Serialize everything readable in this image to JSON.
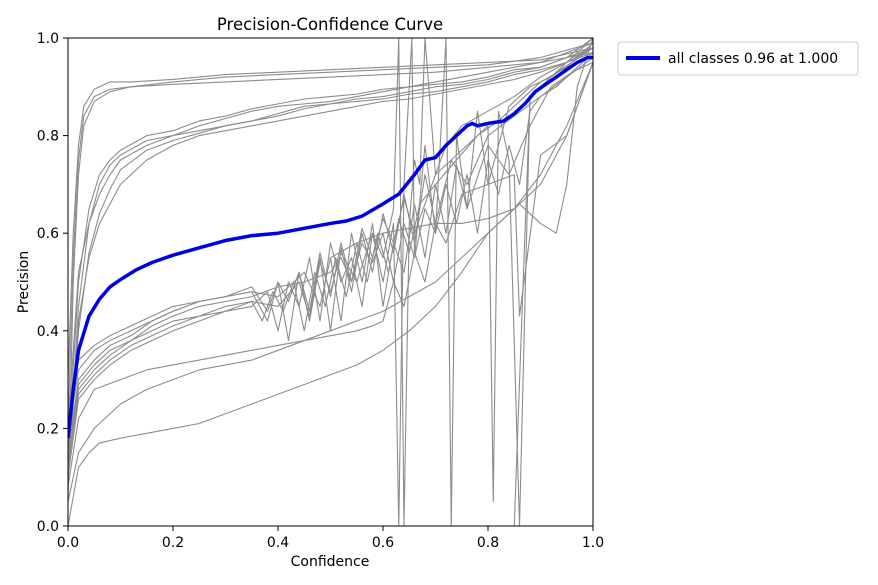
{
  "chart_data": {
    "type": "line",
    "title": "Precision-Confidence Curve",
    "xlabel": "Confidence",
    "ylabel": "Precision",
    "xlim": [
      0.0,
      1.0
    ],
    "ylim": [
      0.0,
      1.0
    ],
    "xticks": [
      "0.0",
      "0.2",
      "0.4",
      "0.6",
      "0.8",
      "1.0"
    ],
    "yticks": [
      "0.0",
      "0.2",
      "0.4",
      "0.6",
      "0.8",
      "1.0"
    ],
    "grid": false,
    "legend_position": "outside-top-right",
    "legend": [
      "all classes 0.96 at 1.000"
    ],
    "colors": {
      "class_line": "#8c8c8c",
      "all_classes": "#0000e6"
    },
    "series": [
      {
        "name": "all classes 0.96 at 1.000",
        "highlight": true,
        "x": [
          0.0,
          0.01,
          0.02,
          0.04,
          0.06,
          0.08,
          0.1,
          0.13,
          0.16,
          0.2,
          0.25,
          0.3,
          0.35,
          0.4,
          0.45,
          0.5,
          0.53,
          0.56,
          0.6,
          0.63,
          0.66,
          0.68,
          0.7,
          0.72,
          0.74,
          0.76,
          0.77,
          0.78,
          0.8,
          0.83,
          0.85,
          0.87,
          0.89,
          0.91,
          0.93,
          0.95,
          0.97,
          0.99,
          1.0
        ],
        "y": [
          0.18,
          0.28,
          0.36,
          0.43,
          0.465,
          0.49,
          0.505,
          0.525,
          0.54,
          0.555,
          0.57,
          0.585,
          0.595,
          0.6,
          0.61,
          0.62,
          0.625,
          0.635,
          0.66,
          0.68,
          0.72,
          0.75,
          0.755,
          0.78,
          0.8,
          0.82,
          0.825,
          0.82,
          0.825,
          0.83,
          0.845,
          0.865,
          0.89,
          0.905,
          0.92,
          0.935,
          0.95,
          0.96,
          0.96
        ]
      },
      {
        "name": "",
        "x": [
          0.0,
          0.01,
          0.02,
          0.03,
          0.05,
          0.08,
          0.12,
          0.2,
          0.3,
          0.4,
          0.5,
          0.6,
          0.7,
          0.8,
          0.9,
          0.95,
          1.0
        ],
        "y": [
          0.05,
          0.5,
          0.72,
          0.82,
          0.87,
          0.89,
          0.9,
          0.905,
          0.91,
          0.915,
          0.92,
          0.925,
          0.93,
          0.94,
          0.95,
          0.96,
          0.97
        ]
      },
      {
        "name": "",
        "x": [
          0.0,
          0.01,
          0.02,
          0.03,
          0.05,
          0.08,
          0.12,
          0.2,
          0.3,
          0.4,
          0.5,
          0.6,
          0.7,
          0.8,
          0.9,
          1.0
        ],
        "y": [
          0.2,
          0.55,
          0.75,
          0.84,
          0.88,
          0.895,
          0.9,
          0.91,
          0.92,
          0.925,
          0.93,
          0.935,
          0.94,
          0.945,
          0.96,
          0.99
        ]
      },
      {
        "name": "",
        "x": [
          0.0,
          0.01,
          0.02,
          0.03,
          0.05,
          0.08,
          0.12,
          0.2,
          0.3,
          0.4,
          0.5,
          0.6,
          0.7,
          0.8,
          0.9,
          1.0
        ],
        "y": [
          0.3,
          0.6,
          0.78,
          0.86,
          0.895,
          0.91,
          0.91,
          0.915,
          0.925,
          0.93,
          0.935,
          0.94,
          0.945,
          0.95,
          0.955,
          0.98
        ]
      },
      {
        "name": "",
        "x": [
          0.0,
          0.02,
          0.04,
          0.06,
          0.08,
          0.1,
          0.15,
          0.2,
          0.25,
          0.3,
          0.35,
          0.4,
          0.45,
          0.5,
          0.55,
          0.6,
          0.65,
          0.7,
          0.75,
          0.8,
          0.85,
          0.9,
          0.95,
          1.0
        ],
        "y": [
          0.1,
          0.45,
          0.62,
          0.7,
          0.74,
          0.76,
          0.79,
          0.8,
          0.82,
          0.835,
          0.85,
          0.86,
          0.865,
          0.87,
          0.88,
          0.89,
          0.9,
          0.905,
          0.91,
          0.92,
          0.935,
          0.94,
          0.96,
          0.98
        ]
      },
      {
        "name": "",
        "x": [
          0.0,
          0.02,
          0.04,
          0.06,
          0.08,
          0.1,
          0.15,
          0.2,
          0.25,
          0.3,
          0.35,
          0.4,
          0.45,
          0.5,
          0.55,
          0.6,
          0.65,
          0.7,
          0.75,
          0.8,
          0.85,
          0.9,
          0.95,
          1.0
        ],
        "y": [
          0.15,
          0.5,
          0.65,
          0.72,
          0.75,
          0.77,
          0.8,
          0.81,
          0.83,
          0.84,
          0.855,
          0.865,
          0.875,
          0.88,
          0.885,
          0.895,
          0.9,
          0.91,
          0.92,
          0.93,
          0.94,
          0.95,
          0.97,
          0.99
        ]
      },
      {
        "name": "",
        "x": [
          0.0,
          0.02,
          0.04,
          0.06,
          0.08,
          0.1,
          0.15,
          0.2,
          0.25,
          0.3,
          0.35,
          0.4,
          0.45,
          0.5,
          0.55,
          0.6,
          0.65,
          0.7,
          0.75,
          0.8,
          0.85,
          0.9,
          0.95,
          1.0
        ],
        "y": [
          0.2,
          0.52,
          0.62,
          0.68,
          0.72,
          0.75,
          0.78,
          0.8,
          0.81,
          0.82,
          0.83,
          0.845,
          0.86,
          0.865,
          0.87,
          0.875,
          0.885,
          0.89,
          0.9,
          0.91,
          0.925,
          0.935,
          0.95,
          0.97
        ]
      },
      {
        "name": "",
        "x": [
          0.0,
          0.02,
          0.04,
          0.06,
          0.08,
          0.1,
          0.15,
          0.2,
          0.25,
          0.3,
          0.35,
          0.4,
          0.45,
          0.5,
          0.55,
          0.6,
          0.65,
          0.7,
          0.75,
          0.8,
          0.85,
          0.9,
          0.95,
          1.0
        ],
        "y": [
          0.1,
          0.4,
          0.56,
          0.64,
          0.69,
          0.73,
          0.77,
          0.79,
          0.805,
          0.82,
          0.83,
          0.84,
          0.855,
          0.865,
          0.875,
          0.88,
          0.89,
          0.9,
          0.905,
          0.915,
          0.93,
          0.94,
          0.96,
          1.0
        ]
      },
      {
        "name": "",
        "x": [
          0.0,
          0.02,
          0.04,
          0.06,
          0.08,
          0.1,
          0.15,
          0.2,
          0.25,
          0.3,
          0.35,
          0.4,
          0.45,
          0.5,
          0.55,
          0.6,
          0.65,
          0.7,
          0.75,
          0.8,
          0.85,
          0.9,
          0.95,
          1.0
        ],
        "y": [
          0.12,
          0.42,
          0.55,
          0.62,
          0.66,
          0.7,
          0.75,
          0.78,
          0.8,
          0.81,
          0.82,
          0.83,
          0.84,
          0.85,
          0.86,
          0.87,
          0.875,
          0.885,
          0.895,
          0.905,
          0.915,
          0.93,
          0.95,
          0.98
        ]
      },
      {
        "name": "",
        "x": [
          0.0,
          0.02,
          0.05,
          0.08,
          0.12,
          0.16,
          0.2,
          0.25,
          0.3,
          0.35,
          0.4,
          0.45,
          0.5,
          0.52,
          0.54,
          0.56,
          0.58,
          0.6,
          0.62,
          0.64,
          0.66,
          0.68,
          0.7,
          0.72,
          0.74,
          0.76,
          0.78,
          0.8,
          0.82,
          0.84,
          0.86,
          0.88,
          0.9,
          0.93,
          0.96,
          1.0
        ],
        "y": [
          0.12,
          0.28,
          0.32,
          0.35,
          0.38,
          0.41,
          0.43,
          0.45,
          0.46,
          0.47,
          0.49,
          0.5,
          0.52,
          0.55,
          0.5,
          0.58,
          0.54,
          0.6,
          0.5,
          0.62,
          0.55,
          0.65,
          0.6,
          0.7,
          0.62,
          0.72,
          0.6,
          0.75,
          0.68,
          0.78,
          0.7,
          0.85,
          0.88,
          0.9,
          0.93,
          0.95
        ]
      },
      {
        "name": "",
        "x": [
          0.0,
          0.02,
          0.05,
          0.08,
          0.12,
          0.16,
          0.2,
          0.25,
          0.3,
          0.35,
          0.4,
          0.45,
          0.48,
          0.5,
          0.52,
          0.54,
          0.56,
          0.58,
          0.6,
          0.62,
          0.64,
          0.66,
          0.68,
          0.7,
          0.72,
          0.74,
          0.76,
          0.8,
          0.84,
          0.88,
          0.92,
          0.96,
          1.0
        ],
        "y": [
          0.15,
          0.3,
          0.34,
          0.37,
          0.39,
          0.42,
          0.44,
          0.46,
          0.47,
          0.48,
          0.47,
          0.52,
          0.45,
          0.55,
          0.42,
          0.6,
          0.5,
          0.62,
          0.45,
          0.58,
          0.52,
          0.66,
          0.55,
          0.7,
          0.6,
          0.74,
          0.65,
          0.78,
          0.72,
          0.82,
          0.9,
          0.93,
          0.97
        ]
      },
      {
        "name": "",
        "x": [
          0.0,
          0.02,
          0.05,
          0.08,
          0.12,
          0.16,
          0.2,
          0.25,
          0.3,
          0.35,
          0.4,
          0.44,
          0.46,
          0.48,
          0.5,
          0.52,
          0.54,
          0.56,
          0.58,
          0.6,
          0.62,
          0.64,
          0.66,
          0.68,
          0.7,
          0.73,
          0.76,
          0.8,
          0.85,
          0.9,
          0.95,
          1.0
        ],
        "y": [
          0.1,
          0.26,
          0.3,
          0.33,
          0.36,
          0.38,
          0.4,
          0.42,
          0.44,
          0.46,
          0.45,
          0.5,
          0.43,
          0.55,
          0.4,
          0.57,
          0.48,
          0.6,
          0.52,
          0.64,
          0.56,
          0.68,
          0.58,
          0.72,
          0.62,
          0.75,
          0.7,
          0.8,
          0.84,
          0.88,
          0.92,
          0.96
        ]
      },
      {
        "name": "",
        "x": [
          0.0,
          0.02,
          0.05,
          0.08,
          0.12,
          0.16,
          0.2,
          0.25,
          0.3,
          0.35,
          0.38,
          0.4,
          0.42,
          0.44,
          0.46,
          0.48,
          0.5,
          0.52,
          0.54,
          0.56,
          0.58,
          0.6,
          0.62,
          0.64,
          0.66,
          0.7,
          0.74,
          0.78,
          0.82,
          0.86,
          0.9,
          0.95,
          1.0
        ],
        "y": [
          0.18,
          0.32,
          0.36,
          0.38,
          0.4,
          0.42,
          0.44,
          0.46,
          0.47,
          0.48,
          0.42,
          0.5,
          0.38,
          0.52,
          0.44,
          0.56,
          0.47,
          0.58,
          0.5,
          0.61,
          0.55,
          0.63,
          0.58,
          0.67,
          0.6,
          0.72,
          0.76,
          0.8,
          0.83,
          0.87,
          0.91,
          0.94,
          0.99
        ]
      },
      {
        "name": "",
        "x": [
          0.0,
          0.02,
          0.05,
          0.08,
          0.12,
          0.16,
          0.2,
          0.25,
          0.3,
          0.35,
          0.38,
          0.4,
          0.42,
          0.44,
          0.46,
          0.48,
          0.5,
          0.52,
          0.55,
          0.58,
          0.6,
          0.62,
          0.63,
          0.64,
          0.65,
          0.66,
          0.67,
          0.68,
          0.7,
          0.72,
          0.75,
          0.8,
          0.85,
          0.9,
          0.95,
          1.0
        ],
        "y": [
          0.2,
          0.34,
          0.37,
          0.39,
          0.41,
          0.43,
          0.45,
          0.46,
          0.47,
          0.49,
          0.44,
          0.5,
          0.46,
          0.52,
          0.42,
          0.54,
          0.48,
          0.56,
          0.5,
          0.6,
          0.55,
          0.65,
          1.0,
          0.0,
          0.62,
          0.75,
          0.7,
          1.0,
          0.72,
          0.78,
          0.82,
          0.85,
          0.88,
          0.92,
          0.95,
          1.0
        ]
      },
      {
        "name": "",
        "x": [
          0.0,
          0.02,
          0.05,
          0.08,
          0.12,
          0.16,
          0.2,
          0.25,
          0.3,
          0.35,
          0.38,
          0.4,
          0.42,
          0.44,
          0.46,
          0.48,
          0.5,
          0.52,
          0.54,
          0.56,
          0.58,
          0.6,
          0.62,
          0.63,
          0.64,
          0.655,
          0.66,
          0.68,
          0.7,
          0.72,
          0.73,
          0.74,
          0.76,
          0.78,
          0.8,
          0.84,
          0.88,
          0.92,
          0.96,
          1.0
        ],
        "y": [
          0.14,
          0.29,
          0.33,
          0.36,
          0.38,
          0.4,
          0.42,
          0.43,
          0.44,
          0.45,
          0.48,
          0.4,
          0.5,
          0.45,
          0.55,
          0.42,
          0.58,
          0.5,
          0.55,
          0.45,
          0.6,
          0.5,
          0.62,
          0.0,
          0.7,
          1.0,
          0.55,
          0.78,
          0.6,
          1.0,
          0.0,
          0.8,
          0.65,
          0.85,
          0.7,
          0.86,
          0.9,
          0.92,
          0.95,
          0.99
        ]
      },
      {
        "name": "",
        "x": [
          0.0,
          0.02,
          0.05,
          0.08,
          0.12,
          0.16,
          0.2,
          0.25,
          0.3,
          0.35,
          0.37,
          0.39,
          0.41,
          0.43,
          0.45,
          0.47,
          0.49,
          0.51,
          0.53,
          0.55,
          0.57,
          0.59,
          0.61,
          0.63,
          0.65,
          0.67,
          0.7,
          0.74,
          0.78,
          0.8,
          0.81,
          0.82,
          0.84,
          0.86,
          0.88,
          0.9,
          0.93,
          0.96,
          1.0
        ],
        "y": [
          0.12,
          0.27,
          0.31,
          0.34,
          0.37,
          0.39,
          0.41,
          0.43,
          0.45,
          0.46,
          0.42,
          0.48,
          0.44,
          0.5,
          0.4,
          0.52,
          0.45,
          0.55,
          0.47,
          0.58,
          0.5,
          0.6,
          0.52,
          0.63,
          0.56,
          0.66,
          0.7,
          0.75,
          0.8,
          0.82,
          0.05,
          0.85,
          0.75,
          0.0,
          0.88,
          0.9,
          0.93,
          0.95,
          0.98
        ]
      },
      {
        "name": "",
        "x": [
          0.0,
          0.02,
          0.05,
          0.1,
          0.15,
          0.2,
          0.25,
          0.3,
          0.35,
          0.4,
          0.45,
          0.5,
          0.55,
          0.58,
          0.6,
          0.62,
          0.64,
          0.66,
          0.68,
          0.7,
          0.72,
          0.75,
          0.8,
          0.85,
          0.86,
          0.9,
          0.95,
          1.0
        ],
        "y": [
          0.08,
          0.22,
          0.28,
          0.3,
          0.32,
          0.33,
          0.34,
          0.35,
          0.36,
          0.37,
          0.38,
          0.39,
          0.4,
          0.41,
          0.42,
          0.5,
          0.45,
          0.56,
          0.5,
          0.62,
          0.58,
          0.68,
          0.7,
          0.72,
          0.43,
          0.76,
          0.8,
          0.95
        ]
      },
      {
        "name": "",
        "x": [
          0.0,
          0.02,
          0.04,
          0.06,
          0.1,
          0.15,
          0.2,
          0.25,
          0.3,
          0.35,
          0.4,
          0.45,
          0.5,
          0.55,
          0.6,
          0.65,
          0.7,
          0.75,
          0.8,
          0.85,
          0.9,
          0.95,
          1.0
        ],
        "y": [
          0.0,
          0.12,
          0.15,
          0.17,
          0.18,
          0.19,
          0.2,
          0.21,
          0.23,
          0.25,
          0.27,
          0.29,
          0.31,
          0.33,
          0.36,
          0.4,
          0.45,
          0.52,
          0.6,
          0.65,
          0.72,
          0.82,
          0.95
        ]
      },
      {
        "name": "",
        "x": [
          0.0,
          0.02,
          0.05,
          0.1,
          0.15,
          0.2,
          0.25,
          0.3,
          0.35,
          0.4,
          0.45,
          0.5,
          0.55,
          0.6,
          0.65,
          0.7,
          0.75,
          0.8,
          0.85,
          0.9,
          0.95,
          1.0
        ],
        "y": [
          0.05,
          0.15,
          0.2,
          0.25,
          0.28,
          0.3,
          0.32,
          0.33,
          0.34,
          0.36,
          0.38,
          0.4,
          0.42,
          0.44,
          0.47,
          0.5,
          0.55,
          0.6,
          0.65,
          0.7,
          0.8,
          0.95
        ]
      },
      {
        "name": "",
        "x": [
          0.5,
          0.55,
          0.6,
          0.65,
          0.7,
          0.75,
          0.8,
          0.85,
          0.86,
          0.9,
          0.93,
          0.95,
          0.97,
          1.0
        ],
        "y": [
          0.55,
          0.58,
          0.6,
          0.61,
          0.62,
          0.62,
          0.63,
          0.65,
          0.66,
          0.62,
          0.6,
          0.7,
          0.9,
          1.0
        ]
      },
      {
        "name": "",
        "x": [
          0.85,
          0.88,
          0.9,
          0.92,
          0.94,
          0.96,
          0.98,
          1.0
        ],
        "y": [
          0.0,
          0.88,
          0.9,
          0.92,
          0.94,
          0.96,
          0.97,
          0.99
        ]
      }
    ]
  }
}
